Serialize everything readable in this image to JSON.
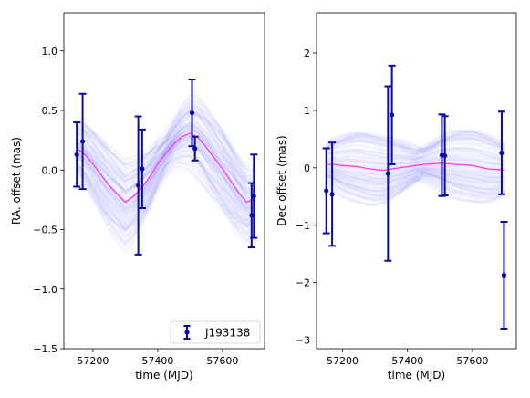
{
  "chart_data": [
    {
      "type": "scatter",
      "panel": "left",
      "xlabel": "time (MJD)",
      "ylabel": "RA. offset (mas)",
      "xlim": [
        57110,
        57730
      ],
      "ylim": [
        -1.5,
        1.32
      ],
      "xticks": [
        57200,
        57400,
        57600
      ],
      "yticks": [
        -1.5,
        -1.0,
        -0.5,
        0.0,
        0.5,
        1.0
      ],
      "ytick_labels": [
        "−1.5",
        "−1.0",
        "−0.5",
        "0.0",
        "0.5",
        "1.0"
      ],
      "grid": false,
      "legend": {
        "position": "lower-right",
        "label": "J193138"
      },
      "series": [
        {
          "name": "J193138",
          "style": "errorbar",
          "color": "#0a0aaa",
          "x": [
            57150,
            57168,
            57340,
            57352,
            57506,
            57515,
            57690,
            57697
          ],
          "y": [
            0.13,
            0.24,
            -0.13,
            0.01,
            0.48,
            0.18,
            -0.38,
            -0.22
          ],
          "yerr": [
            0.27,
            0.4,
            0.58,
            0.33,
            0.28,
            0.1,
            0.27,
            0.35
          ]
        },
        {
          "style": "line",
          "color": "#ff33ff",
          "x": [
            57150,
            57175,
            57200,
            57225,
            57250,
            57275,
            57300,
            57325,
            57350,
            57375,
            57400,
            57425,
            57450,
            57475,
            57500,
            57525,
            57550,
            57575,
            57600,
            57625,
            57650,
            57675,
            57700
          ],
          "y": [
            0.18,
            0.13,
            0.05,
            -0.04,
            -0.13,
            -0.2,
            -0.27,
            -0.22,
            -0.15,
            -0.06,
            0.05,
            0.14,
            0.22,
            0.28,
            0.31,
            0.27,
            0.19,
            0.1,
            0.01,
            -0.09,
            -0.19,
            -0.27,
            -0.24
          ]
        }
      ],
      "model_band": {
        "color": "#5a5aff",
        "opacity": 0.04,
        "spread": 0.22,
        "count": 120
      }
    },
    {
      "type": "scatter",
      "panel": "right",
      "xlabel": "time (MJD)",
      "ylabel": "Dec offset (mas)",
      "xlim": [
        57120,
        57735
      ],
      "ylim": [
        -3.15,
        2.7
      ],
      "xticks": [
        57200,
        57400,
        57600
      ],
      "yticks": [
        -3,
        -2,
        -1,
        0,
        1,
        2
      ],
      "ytick_labels": [
        "−3",
        "−2",
        "−1",
        "0",
        "1",
        "2"
      ],
      "grid": false,
      "series": [
        {
          "style": "errorbar",
          "color": "#0a0aaa",
          "x": [
            57150,
            57168,
            57340,
            57352,
            57506,
            57515,
            57690,
            57697
          ],
          "y": [
            -0.4,
            -0.46,
            -0.1,
            0.92,
            0.22,
            0.21,
            0.26,
            -1.87
          ],
          "yerr": [
            0.74,
            0.9,
            1.52,
            0.86,
            0.71,
            0.69,
            0.72,
            0.93
          ]
        },
        {
          "style": "line",
          "color": "#ff33ff",
          "x": [
            57150,
            57175,
            57200,
            57225,
            57250,
            57275,
            57300,
            57325,
            57350,
            57375,
            57400,
            57425,
            57450,
            57475,
            57500,
            57525,
            57550,
            57575,
            57600,
            57625,
            57650,
            57675,
            57700
          ],
          "y": [
            0.06,
            0.06,
            0.04,
            0.03,
            0.02,
            -0.01,
            -0.03,
            -0.04,
            -0.02,
            0.0,
            0.02,
            0.04,
            0.06,
            0.07,
            0.08,
            0.07,
            0.06,
            0.05,
            0.04,
            0.01,
            -0.02,
            -0.03,
            -0.04
          ]
        }
      ],
      "model_band": {
        "color": "#5a5aff",
        "opacity": 0.04,
        "spread": 0.4,
        "count": 120
      }
    }
  ]
}
